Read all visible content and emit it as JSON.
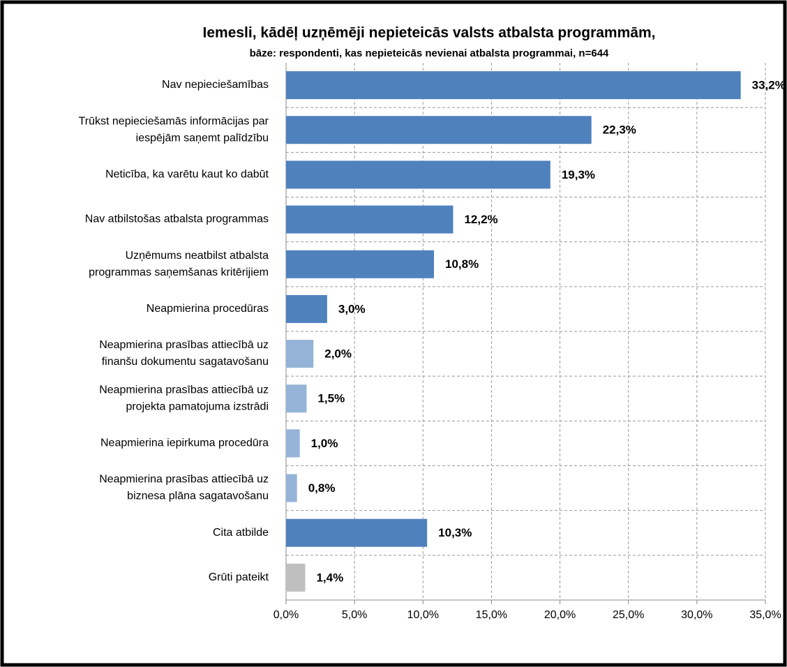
{
  "chart_data": {
    "type": "bar",
    "orientation": "horizontal",
    "title": "Iemesli, kādēļ uzņēmēji nepieteicās valsts atbalsta programmām,",
    "subtitle": "bāze: respondenti, kas nepieteicās nevienai atbalsta programmai, n=644",
    "categories": [
      [
        "Nav nepieciešamības"
      ],
      [
        "Trūkst nepieciešamās informācijas par",
        "iespējām saņemt palīdzību"
      ],
      [
        "Neticība, ka varētu kaut ko dabūt"
      ],
      [
        "Nav atbilstošas atbalsta programmas"
      ],
      [
        "Uzņēmums neatbilst atbalsta",
        "programmas saņemšanas kritērijiem"
      ],
      [
        "Neapmierina procedūras"
      ],
      [
        "Neapmierina prasības attiecībā uz",
        "finanšu dokumentu sagatavošanu"
      ],
      [
        "Neapmierina prasības attiecībā uz",
        "projekta pamatojuma izstrādi"
      ],
      [
        "Neapmierina iepirkuma procedūra"
      ],
      [
        "Neapmierina prasības attiecībā uz",
        "biznesa plāna sagatavošanu"
      ],
      [
        "Cita atbilde"
      ],
      [
        "Grūti pateikt"
      ]
    ],
    "values": [
      33.2,
      22.3,
      19.3,
      12.2,
      10.8,
      3.0,
      2.0,
      1.5,
      1.0,
      0.8,
      10.3,
      1.4
    ],
    "value_labels": [
      "33,2%",
      "22,3%",
      "19,3%",
      "12,2%",
      "10,8%",
      "3,0%",
      "2,0%",
      "1,5%",
      "1,0%",
      "0,8%",
      "10,3%",
      "1,4%"
    ],
    "colors": [
      "#4f81bd",
      "#4f81bd",
      "#4f81bd",
      "#4f81bd",
      "#4f81bd",
      "#4f81bd",
      "#95b3d7",
      "#95b3d7",
      "#95b3d7",
      "#95b3d7",
      "#4f81bd",
      "#bfbfbf"
    ],
    "xlim": [
      0,
      35
    ],
    "xticks": [
      {
        "value": 0,
        "label": "0,0%"
      },
      {
        "value": 5,
        "label": "5,0%"
      },
      {
        "value": 10,
        "label": "10,0%"
      },
      {
        "value": 15,
        "label": "15,0%"
      },
      {
        "value": 20,
        "label": "20,0%"
      },
      {
        "value": 25,
        "label": "25,0%"
      },
      {
        "value": 30,
        "label": "30,0%"
      },
      {
        "value": 35,
        "label": "35,0%"
      }
    ],
    "grid": true
  }
}
